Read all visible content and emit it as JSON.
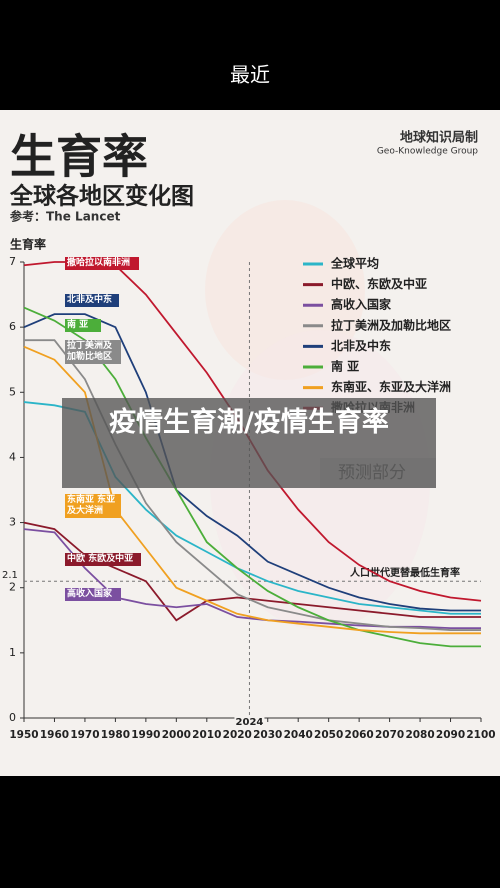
{
  "header": {
    "title": "最近"
  },
  "overlay": {
    "caption": "疫情生育潮/疫情生育率"
  },
  "chart_data": {
    "type": "line",
    "title": "生育率",
    "subtitle": "全球各地区变化图",
    "source": "参考：The Lancet",
    "brand": "地球知识局制",
    "brand_en": "Geo-Knowledge Group",
    "y_label": "生育率",
    "x": [
      1950,
      1960,
      1970,
      1980,
      1990,
      2000,
      2010,
      2020,
      2030,
      2040,
      2050,
      2060,
      2070,
      2080,
      2090,
      2100
    ],
    "xlim": [
      1950,
      2100
    ],
    "xticks": [
      1950,
      1960,
      1970,
      1980,
      1990,
      2000,
      2010,
      2020,
      2030,
      2040,
      2050,
      2060,
      2070,
      2080,
      2090,
      2100
    ],
    "ylim": [
      0,
      7
    ],
    "yticks": [
      0,
      1,
      2,
      3,
      4,
      5,
      6,
      7
    ],
    "legend": "top-right",
    "reference_line": {
      "value": 2.1,
      "label": "人口世代更替最低生育率"
    },
    "forecast_start": {
      "value": 2024,
      "label": "预测部分"
    },
    "series": [
      {
        "name": "全球平均",
        "color": "#2bb5c8",
        "values": [
          4.85,
          4.8,
          4.7,
          3.7,
          3.2,
          2.8,
          2.55,
          2.3,
          2.1,
          1.95,
          1.85,
          1.75,
          1.7,
          1.65,
          1.6,
          1.6
        ]
      },
      {
        "name": "中欧、东欧及中亚",
        "color": "#8b1a2b",
        "values": [
          3.0,
          2.9,
          2.5,
          2.3,
          2.1,
          1.5,
          1.8,
          1.85,
          1.8,
          1.75,
          1.7,
          1.65,
          1.6,
          1.55,
          1.55,
          1.55
        ]
      },
      {
        "name": "高收入国家",
        "color": "#7b4fa0",
        "values": [
          2.9,
          2.85,
          2.3,
          1.85,
          1.75,
          1.7,
          1.75,
          1.55,
          1.5,
          1.48,
          1.45,
          1.42,
          1.4,
          1.4,
          1.38,
          1.38
        ]
      },
      {
        "name": "拉丁美洲及加勒比地区",
        "color": "#8a8a8a",
        "values": [
          5.8,
          5.8,
          5.2,
          4.2,
          3.3,
          2.7,
          2.3,
          1.9,
          1.7,
          1.6,
          1.5,
          1.45,
          1.4,
          1.38,
          1.35,
          1.35
        ]
      },
      {
        "name": "北非及中东",
        "color": "#1f3f7a",
        "values": [
          6.0,
          6.2,
          6.2,
          6.0,
          5.0,
          3.5,
          3.1,
          2.8,
          2.4,
          2.2,
          2.0,
          1.85,
          1.75,
          1.68,
          1.65,
          1.65
        ]
      },
      {
        "name": "南 亚",
        "color": "#4cae3a",
        "values": [
          6.3,
          6.1,
          5.8,
          5.2,
          4.3,
          3.5,
          2.7,
          2.3,
          1.95,
          1.7,
          1.5,
          1.35,
          1.25,
          1.15,
          1.1,
          1.1
        ]
      },
      {
        "name": "东南亚、东亚及大洋洲",
        "color": "#f0a020",
        "values": [
          5.7,
          5.5,
          5.0,
          3.2,
          2.6,
          2.0,
          1.8,
          1.6,
          1.5,
          1.45,
          1.4,
          1.35,
          1.32,
          1.3,
          1.3,
          1.3
        ]
      },
      {
        "name": "撒哈拉以南非洲",
        "color": "#c0182e",
        "values": [
          6.95,
          7.0,
          7.0,
          6.95,
          6.5,
          5.9,
          5.3,
          4.6,
          3.8,
          3.2,
          2.7,
          2.35,
          2.1,
          1.95,
          1.85,
          1.8
        ]
      }
    ],
    "annotations": [
      "撒哈拉以南非洲",
      "北非及中东",
      "南 亚",
      "拉丁美洲及加勒比地区",
      "东南亚 东亚及大洋洲",
      "中欧 东欧及中亚",
      "高收入国家"
    ]
  }
}
